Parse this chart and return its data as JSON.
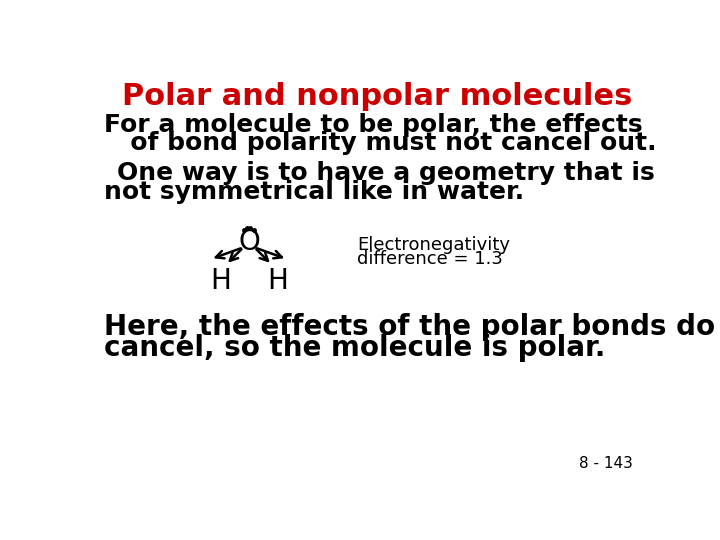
{
  "title": "Polar and nonpolar molecules",
  "title_color": "#cc0000",
  "title_fontsize": 22,
  "bg_color": "#ffffff",
  "text_color": "#000000",
  "para1_line1": "For a molecule to be polar, the effects",
  "para1_line2": "   of bond polarity must not cancel out.",
  "para2_line1": "One way is to have a geometry that is",
  "para2_line2": "not symmetrical like in water.",
  "para3_line1": "Here, the effects of the polar bonds do not",
  "para3_line2": "cancel, so the molecule is polar.",
  "en_line1": "Electronegativity",
  "en_line2": "difference = 1.3",
  "page_number": "8 - 143",
  "body_fontsize": 18,
  "en_fontsize": 13,
  "page_fontsize": 11,
  "mol_fontsize": 18
}
